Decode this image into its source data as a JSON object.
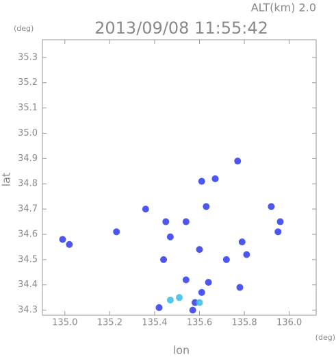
{
  "chart_data": {
    "type": "scatter",
    "corner_label": "ALT(km) 2.0",
    "title": "2013/09/08 11:55:42",
    "y_unit": "(deg)",
    "x_unit": "(deg)",
    "ylabel": "lat",
    "xlabel": "lon",
    "xlim": [
      134.9,
      136.12
    ],
    "ylim": [
      34.28,
      35.37
    ],
    "xticks": [
      {
        "value": 135.0,
        "label": "135.0"
      },
      135.2,
      135.4,
      135.6,
      135.8,
      {
        "value": 136.0,
        "label": "136.0"
      }
    ],
    "yticks": [
      34.3,
      34.4,
      34.5,
      34.6,
      34.7,
      34.8,
      34.9,
      {
        "value": 35.0,
        "label": "35.0"
      },
      35.1,
      35.2,
      35.3
    ],
    "series": [
      {
        "color": "#3a45ee",
        "x": [
          134.99,
          135.02,
          135.23,
          135.36,
          135.45,
          135.47,
          135.54,
          135.61,
          135.67,
          135.77,
          135.63,
          135.92,
          135.96,
          135.95,
          135.81,
          135.79,
          135.72,
          135.64,
          135.61,
          135.58,
          135.57,
          135.78,
          135.54,
          135.6,
          135.44,
          135.42
        ],
        "values": [
          34.58,
          34.56,
          34.61,
          34.7,
          34.65,
          34.59,
          34.65,
          34.81,
          34.82,
          34.89,
          34.71,
          34.71,
          34.65,
          34.61,
          34.52,
          34.57,
          34.5,
          34.41,
          34.37,
          34.33,
          34.3,
          34.39,
          34.42,
          34.54,
          34.5,
          34.31
        ]
      },
      {
        "color": "#40c0e8",
        "x": [
          135.51,
          135.47,
          135.6
        ],
        "values": [
          34.35,
          34.34,
          34.33
        ]
      }
    ]
  }
}
